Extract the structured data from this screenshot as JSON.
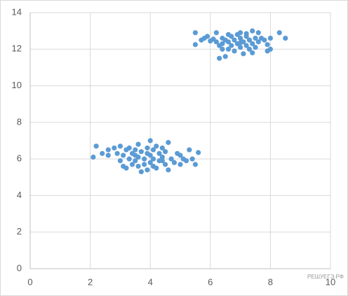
{
  "chart_data": {
    "type": "scatter",
    "annotation": "РЕШУЕГЭ.РФ",
    "series": [
      {
        "color": "#5b9bd5",
        "x": [
          5.5,
          5.5,
          5.7,
          5.8,
          5.9,
          6.0,
          6.1,
          6.2,
          6.2,
          6.3,
          6.3,
          6.4,
          6.4,
          6.5,
          6.5,
          6.6,
          6.6,
          6.7,
          6.7,
          6.8,
          6.8,
          6.9,
          6.9,
          7.0,
          7.0,
          7.0,
          7.1,
          7.1,
          7.2,
          7.2,
          7.3,
          7.3,
          7.4,
          7.4,
          7.4,
          7.5,
          7.5,
          7.6,
          7.6,
          7.7,
          7.8,
          7.9,
          7.9,
          8.0,
          8.0,
          8.3,
          8.5,
          6.6,
          7.0,
          7.2,
          6.4,
          2.1,
          2.2,
          2.4,
          2.6,
          2.6,
          2.8,
          2.9,
          3.0,
          3.0,
          3.1,
          3.1,
          3.2,
          3.2,
          3.3,
          3.3,
          3.4,
          3.4,
          3.5,
          3.5,
          3.6,
          3.6,
          3.6,
          3.7,
          3.7,
          3.8,
          3.8,
          3.9,
          3.9,
          4.0,
          4.0,
          4.0,
          4.1,
          4.1,
          4.2,
          4.2,
          4.3,
          4.3,
          4.4,
          4.4,
          4.5,
          4.5,
          4.6,
          4.6,
          4.7,
          4.8,
          4.9,
          5.0,
          5.0,
          5.1,
          5.2,
          5.3,
          5.4,
          5.5,
          5.6,
          3.5,
          4.1,
          3.9,
          4.4
        ],
        "values": [
          12.9,
          12.25,
          12.5,
          12.6,
          12.7,
          12.45,
          12.55,
          12.9,
          12.4,
          12.2,
          11.5,
          12.6,
          12.3,
          11.6,
          12.5,
          12.0,
          12.4,
          12.7,
          12.2,
          11.9,
          12.5,
          12.8,
          12.3,
          12.6,
          12.1,
          12.9,
          12.4,
          11.75,
          12.7,
          12.2,
          12.5,
          12.0,
          13.0,
          12.3,
          11.8,
          12.6,
          12.1,
          12.9,
          12.4,
          12.6,
          12.5,
          11.9,
          12.25,
          12.0,
          12.6,
          12.9,
          12.6,
          12.8,
          12.35,
          12.85,
          12.0,
          6.1,
          6.7,
          6.3,
          6.5,
          6.2,
          6.6,
          6.3,
          6.7,
          5.9,
          5.6,
          6.2,
          6.5,
          5.5,
          6.0,
          6.6,
          5.7,
          6.3,
          5.9,
          6.5,
          6.8,
          6.1,
          5.6,
          5.3,
          6.4,
          6.0,
          5.7,
          6.6,
          5.4,
          7.0,
          6.2,
          5.8,
          6.5,
          6.0,
          5.5,
          6.7,
          6.3,
          5.9,
          6.6,
          6.1,
          5.7,
          6.4,
          5.4,
          6.9,
          6.0,
          5.8,
          6.3,
          5.7,
          6.2,
          6.0,
          5.9,
          6.5,
          6.0,
          5.7,
          6.35,
          6.2,
          5.6,
          6.3,
          5.9
        ]
      }
    ],
    "xlim": [
      0,
      10
    ],
    "xticks": [
      0,
      2,
      4,
      6,
      8,
      10
    ],
    "ylim": [
      0,
      14
    ],
    "yticks": [
      0,
      2,
      4,
      6,
      8,
      10,
      12,
      14
    ],
    "grid": true
  }
}
